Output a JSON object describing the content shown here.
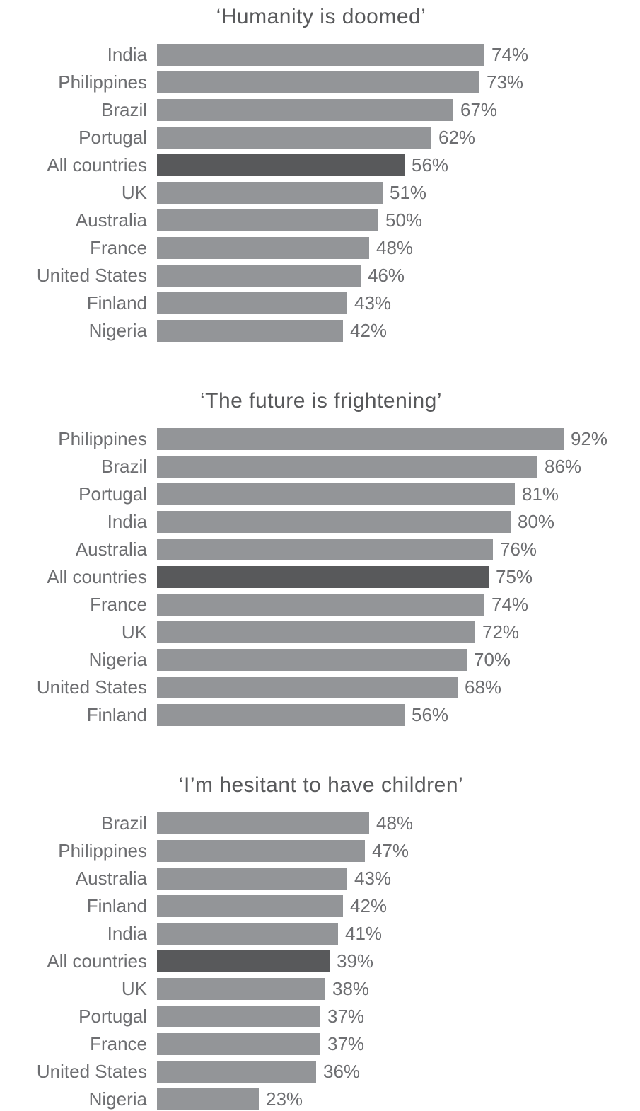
{
  "colors": {
    "bar": "#939598",
    "highlight_bar": "#58595B",
    "category_label": "#6D6E71",
    "value_label": "#6D6E71",
    "title": "#58595B",
    "background": "#FFFFFF"
  },
  "highlight_category": "All countries",
  "chart_data": [
    {
      "type": "bar",
      "orientation": "horizontal",
      "title": "‘Humanity is doomed’",
      "unit": "%",
      "xlim": [
        0,
        100
      ],
      "grid": false,
      "legend": false,
      "highlight_category": "All countries",
      "categories": [
        "India",
        "Philippines",
        "Brazil",
        "Portugal",
        "All countries",
        "UK",
        "Australia",
        "France",
        "United States",
        "Finland",
        "Nigeria"
      ],
      "values": [
        74,
        73,
        67,
        62,
        56,
        51,
        50,
        48,
        46,
        43,
        42
      ],
      "value_labels": [
        "74%",
        "73%",
        "67%",
        "62%",
        "56%",
        "51%",
        "50%",
        "48%",
        "46%",
        "43%",
        "42%"
      ]
    },
    {
      "type": "bar",
      "orientation": "horizontal",
      "title": "‘The future is frightening’",
      "unit": "%",
      "xlim": [
        0,
        100
      ],
      "grid": false,
      "legend": false,
      "highlight_category": "All countries",
      "categories": [
        "Philippines",
        "Brazil",
        "Portugal",
        "India",
        "Australia",
        "All countries",
        "France",
        "UK",
        "Nigeria",
        "United States",
        "Finland"
      ],
      "values": [
        92,
        86,
        81,
        80,
        76,
        75,
        74,
        72,
        70,
        68,
        56
      ],
      "value_labels": [
        "92%",
        "86%",
        "81%",
        "80%",
        "76%",
        "75%",
        "74%",
        "72%",
        "70%",
        "68%",
        "56%"
      ]
    },
    {
      "type": "bar",
      "orientation": "horizontal",
      "title": "‘I’m hesitant to have children’",
      "unit": "%",
      "xlim": [
        0,
        100
      ],
      "grid": false,
      "legend": false,
      "highlight_category": "All countries",
      "categories": [
        "Brazil",
        "Philippines",
        "Australia",
        "Finland",
        "India",
        "All countries",
        "UK",
        "Portugal",
        "France",
        "United States",
        "Nigeria"
      ],
      "values": [
        48,
        47,
        43,
        42,
        41,
        39,
        38,
        37,
        37,
        36,
        23
      ],
      "value_labels": [
        "48%",
        "47%",
        "43%",
        "42%",
        "41%",
        "39%",
        "38%",
        "37%",
        "37%",
        "36%",
        "23%"
      ]
    }
  ]
}
